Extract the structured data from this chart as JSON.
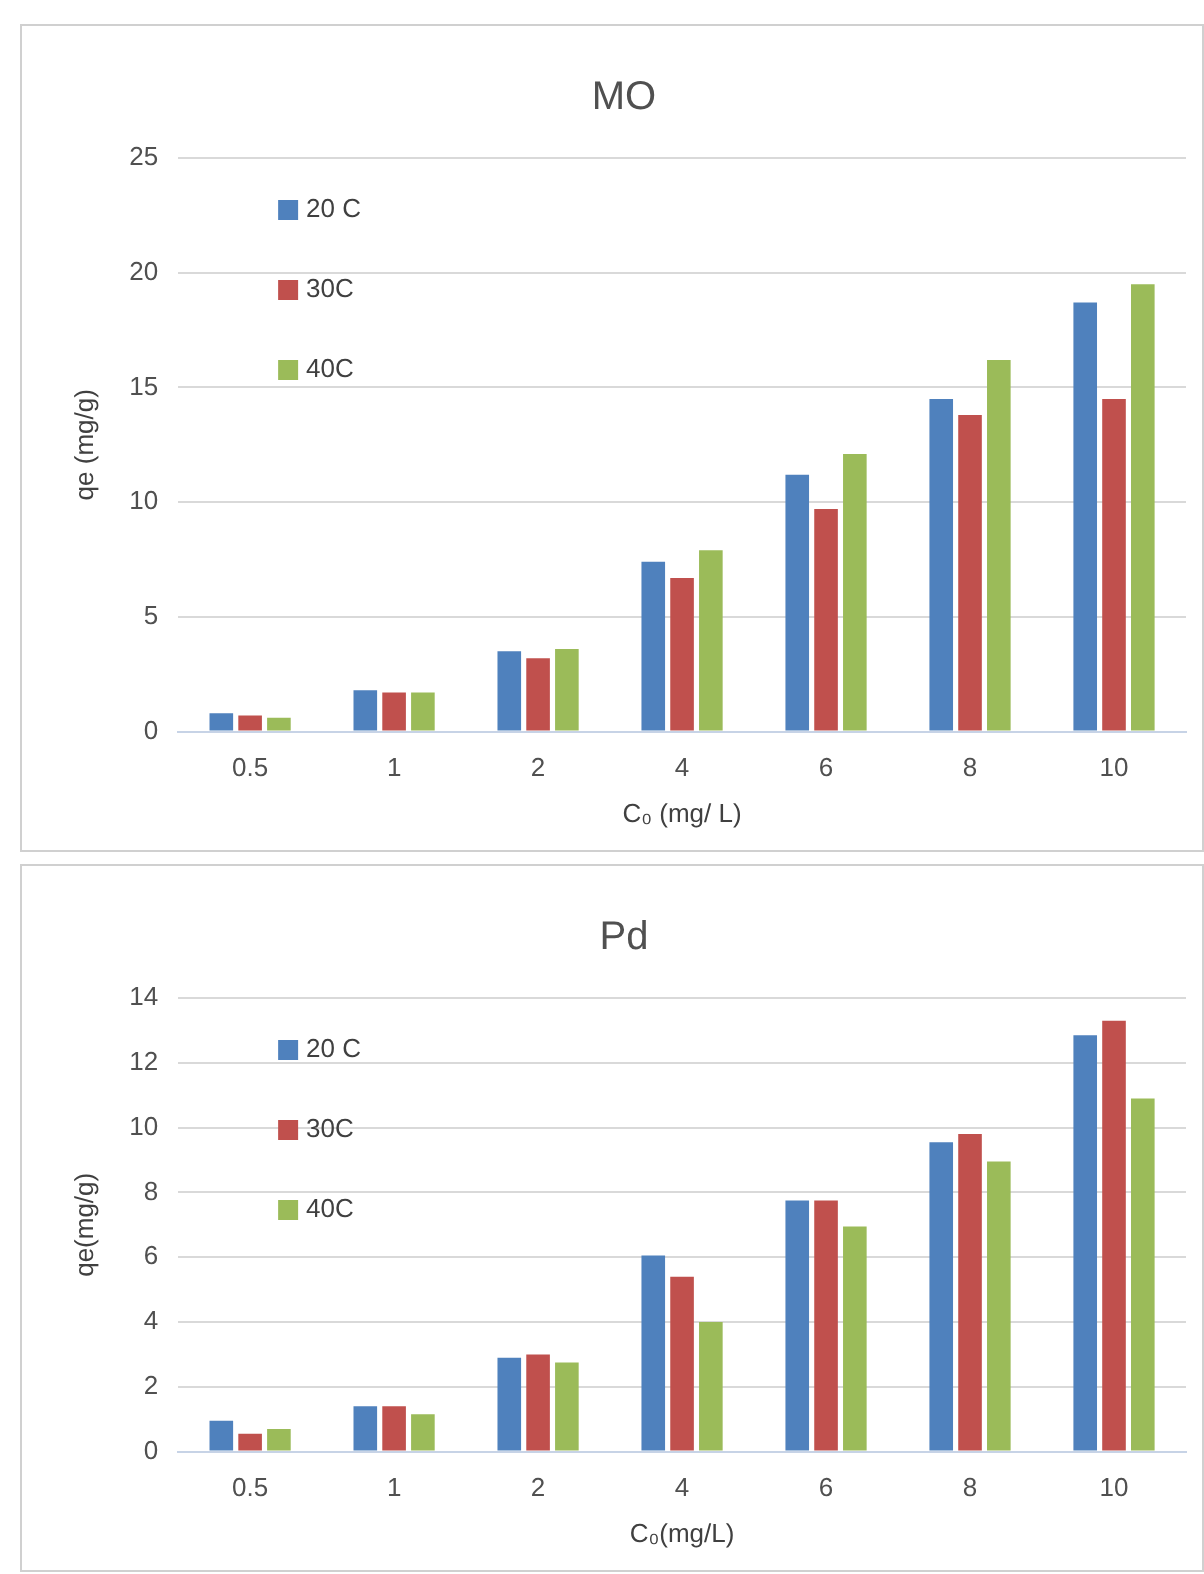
{
  "chart_data": [
    {
      "type": "bar",
      "title": "MO",
      "xlabel": "C₀ (mg/ L)",
      "ylabel": "qe (mg/g)",
      "categories": [
        "0.5",
        "1",
        "2",
        "4",
        "6",
        "8",
        "10"
      ],
      "series": [
        {
          "name": "20 C",
          "color": "#4f81bd",
          "values": [
            0.8,
            1.8,
            3.5,
            7.4,
            11.2,
            14.5,
            18.7
          ]
        },
        {
          "name": "30C",
          "color": "#c0504d",
          "values": [
            0.7,
            1.7,
            3.2,
            6.7,
            9.7,
            13.8,
            14.5
          ]
        },
        {
          "name": "40C",
          "color": "#9bbb59",
          "values": [
            0.6,
            1.7,
            3.6,
            7.9,
            12.1,
            16.2,
            19.5
          ]
        }
      ],
      "ylim": [
        0,
        25
      ],
      "yticks": [
        0,
        5,
        10,
        15,
        20,
        25
      ],
      "grid": "y",
      "legend": "top left"
    },
    {
      "type": "bar",
      "title": "Pd",
      "xlabel": "C₀(mg/L)",
      "ylabel": "qe(mg/g)",
      "categories": [
        "0.5",
        "1",
        "2",
        "4",
        "6",
        "8",
        "10"
      ],
      "series": [
        {
          "name": "20 C",
          "color": "#4f81bd",
          "values": [
            0.95,
            1.4,
            2.9,
            6.05,
            7.75,
            9.55,
            12.85
          ]
        },
        {
          "name": "30C",
          "color": "#c0504d",
          "values": [
            0.55,
            1.4,
            3.0,
            5.4,
            7.75,
            9.8,
            13.3
          ]
        },
        {
          "name": "40C",
          "color": "#9bbb59",
          "values": [
            0.7,
            1.15,
            2.75,
            4.0,
            6.95,
            8.95,
            10.9
          ]
        }
      ],
      "ylim": [
        0,
        14
      ],
      "yticks": [
        0,
        2,
        4,
        6,
        8,
        10,
        12,
        14
      ],
      "grid": "y",
      "legend": "top left"
    }
  ]
}
